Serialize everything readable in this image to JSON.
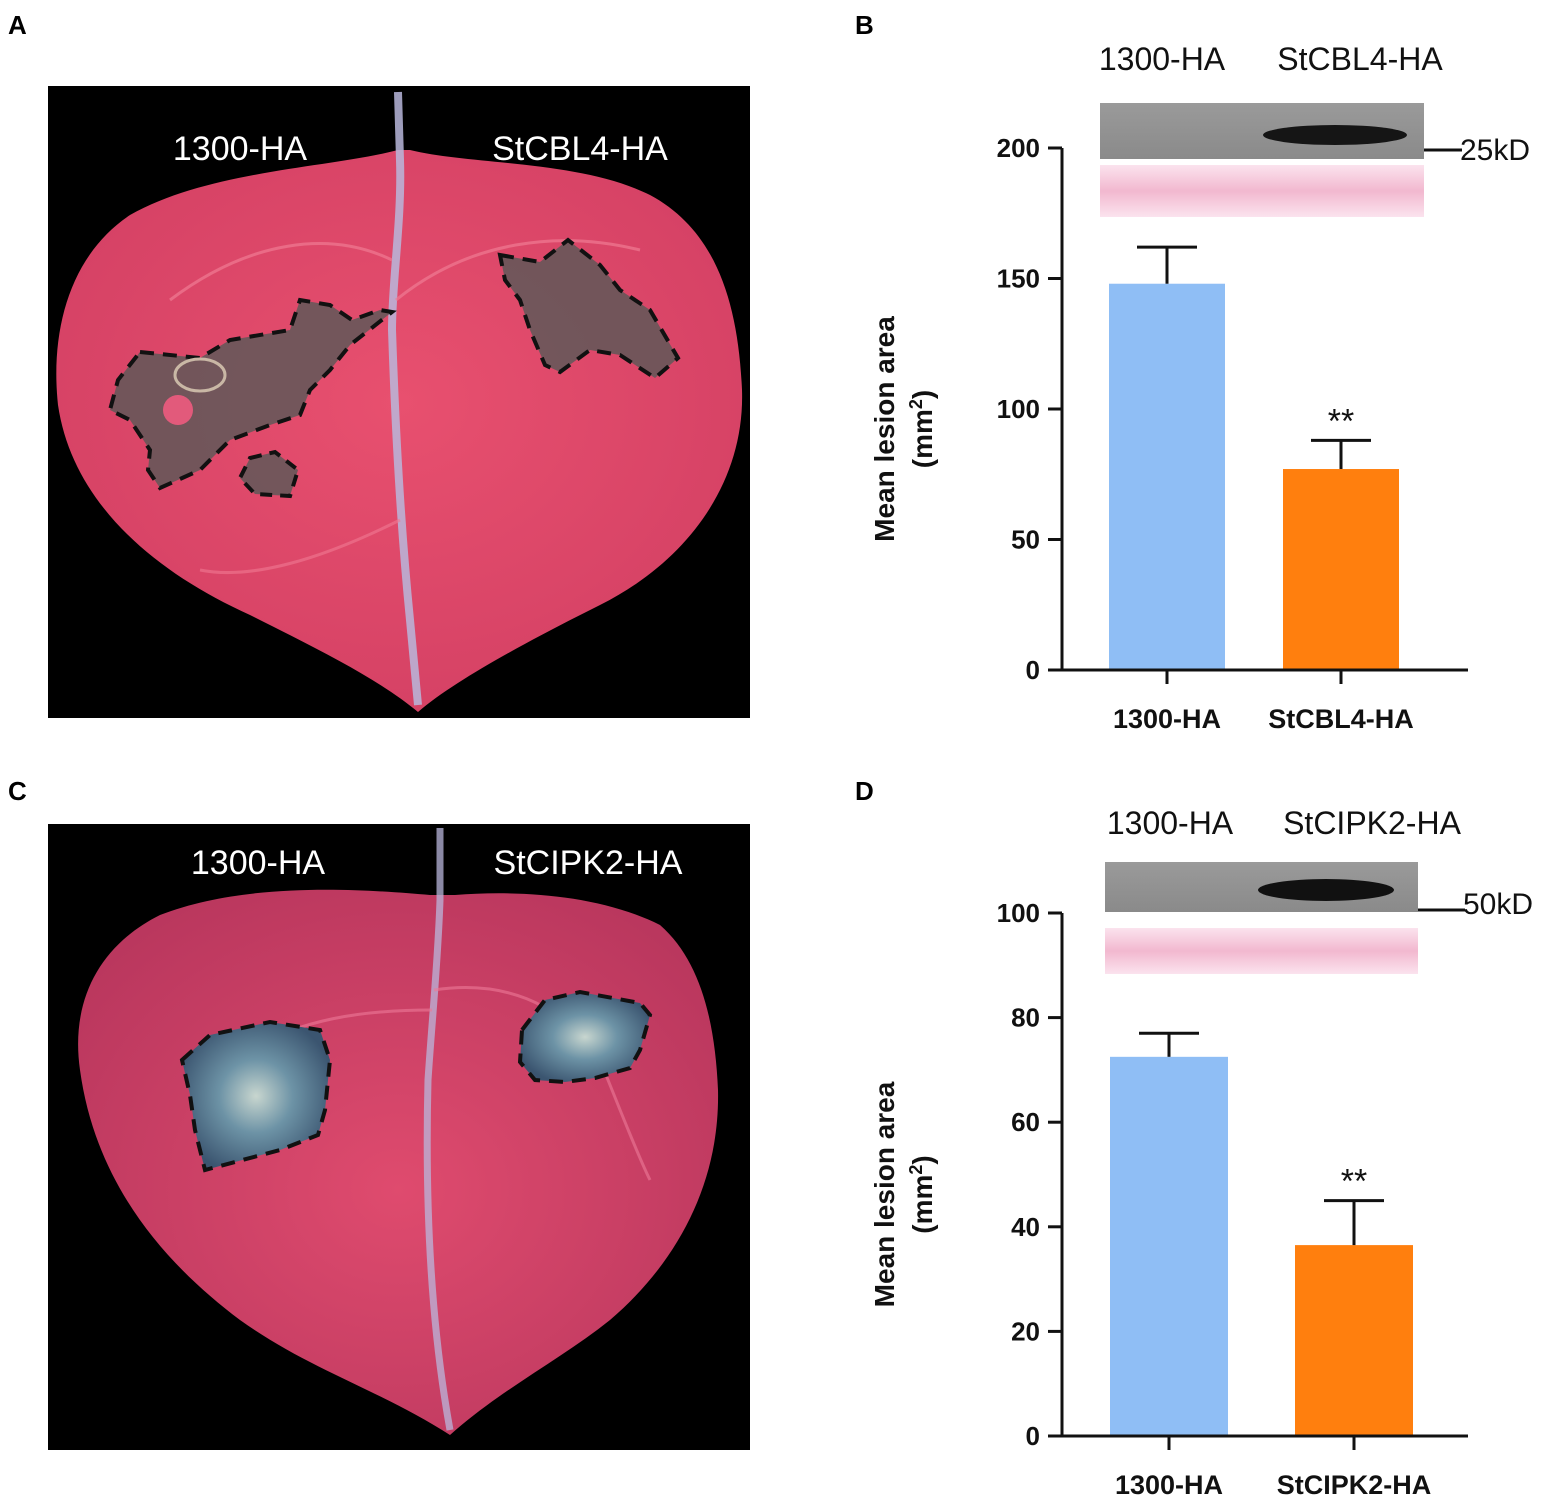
{
  "panels": {
    "A": {
      "letter": "A",
      "left_label": "1300-HA",
      "right_label": "StCBL4-HA",
      "colors": {
        "background": "#000000",
        "leaf": "#e04a6e",
        "vein": "#c9c9e6",
        "lesion": "#5e5656"
      }
    },
    "B": {
      "letter": "B",
      "blot_lane_labels": [
        "1300-HA",
        "StCBL4-HA"
      ],
      "marker_label": "25kD"
    },
    "C": {
      "letter": "C",
      "left_label": "1300-HA",
      "right_label": "StCIPK2-HA",
      "colors": {
        "background": "#000000",
        "leaf": "#d8416a",
        "vein": "#c9c9e6",
        "lesion": "#5c7a92"
      }
    },
    "D": {
      "letter": "D",
      "blot_lane_labels": [
        "1300-HA",
        "StCIPK2-HA"
      ],
      "marker_label": "50kD"
    }
  },
  "chart_data": [
    {
      "type": "bar",
      "panel": "B",
      "categories": [
        "1300-HA",
        "StCBL4-HA"
      ],
      "values": [
        148,
        77
      ],
      "errors": [
        14,
        11
      ],
      "significance": [
        "",
        "**"
      ],
      "colors": [
        "#8fbef5",
        "#ff7f0e"
      ],
      "ylabel": "Mean lesion area",
      "yunit_base": "(mm",
      "yunit_sup": "2",
      "yunit_close": ")",
      "ylim": [
        0,
        200
      ],
      "yticks": [
        0,
        50,
        100,
        150,
        200
      ],
      "yticklabels": [
        "0",
        "50",
        "100",
        "150",
        "200"
      ]
    },
    {
      "type": "bar",
      "panel": "D",
      "categories": [
        "1300-HA",
        "StCIPK2-HA"
      ],
      "values": [
        72.5,
        36.5
      ],
      "errors": [
        4.5,
        8.5
      ],
      "significance": [
        "",
        "**"
      ],
      "colors": [
        "#8fbef5",
        "#ff7f0e"
      ],
      "ylabel": "Mean lesion area",
      "yunit_base": "(mm",
      "yunit_sup": "2",
      "yunit_close": ")",
      "ylim": [
        0,
        100
      ],
      "yticks": [
        0,
        20,
        40,
        60,
        80,
        100
      ],
      "yticklabels": [
        "0",
        "20",
        "40",
        "60",
        "80",
        "100"
      ]
    }
  ]
}
